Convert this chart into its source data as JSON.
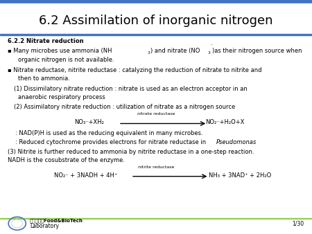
{
  "title": "6.2 Assimilation of inorganic nitrogen",
  "background_color": "#ffffff",
  "top_bar_color": "#4472C4",
  "bottom_bar_color": "#92D050",
  "header": "6.2.2 Nitrate reduction",
  "rxn1_label": "nitrate reductase",
  "rxn1_left": "NO₃⁻+XH₂",
  "rxn1_right": "NO₂⁻+H₂O+X",
  "note1": ": NAD(P)H is used as the reducing equivalent in many microbes.",
  "note2": ": Reduced cytochrome provides electrons for nitrate reductase in ",
  "note2_italic": "Pseudomonas",
  "item3_line1": "(3) Nitrite is further reduced to ammonia by nitrite reductase in a one-step reaction.",
  "item3_line2": "NADH is the cosubstrate of the enzyme.",
  "rxn2_label": "nitrite reductase",
  "rxn2_left": "NO₂⁻ + 3NADH + 4H⁺",
  "rxn2_right": "NH₃ + 3NAD⁺ + 2H₂O",
  "page_num": "1/30",
  "logo_text1": "국민대학교Food&BioTech",
  "logo_text2": "Laboratory"
}
